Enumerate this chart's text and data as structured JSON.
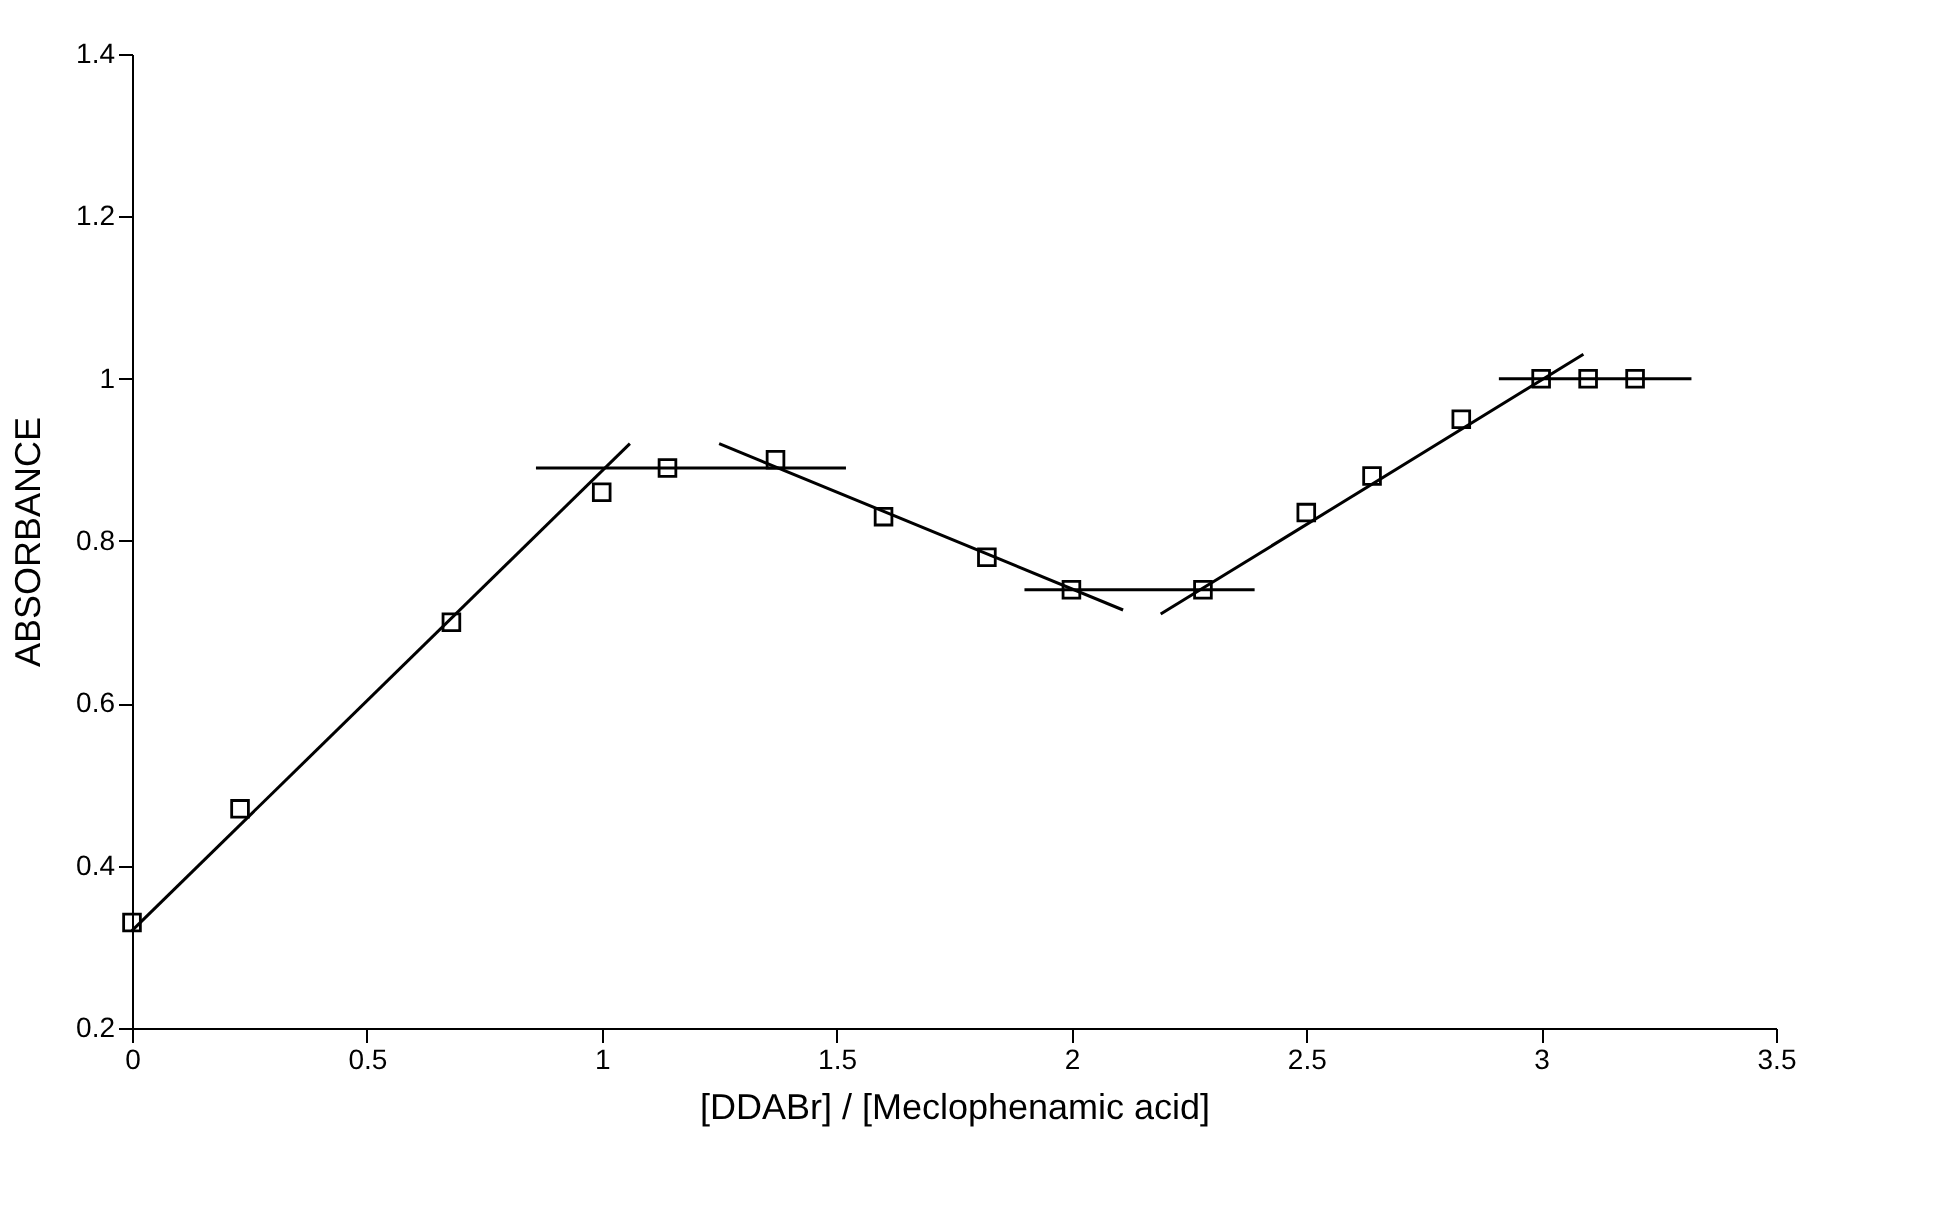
{
  "chart_data": {
    "type": "scatter",
    "xlabel": "[DDABr] / [Meclophenamic acid]",
    "ylabel": "ABSORBANCE",
    "xlim": [
      0,
      3.5
    ],
    "xticks": [
      0,
      0.5,
      1,
      1.5,
      2,
      2.5,
      3,
      3.5
    ],
    "ylim": [
      0.2,
      1.4
    ],
    "yticks": [
      0.2,
      0.4,
      0.6,
      0.8,
      1,
      1.2,
      1.4
    ],
    "grid": false,
    "series": [
      {
        "marker": "square",
        "color": "#000000",
        "x": [
          0,
          0.23,
          0.68,
          1.0,
          1.14,
          1.37,
          1.6,
          1.82,
          2.0,
          2.28,
          2.5,
          2.64,
          2.83,
          3.0,
          3.1,
          3.2
        ],
        "values": [
          0.33,
          0.47,
          0.7,
          0.86,
          0.89,
          0.9,
          0.83,
          0.78,
          0.74,
          0.74,
          0.835,
          0.88,
          0.95,
          1.0,
          1.0,
          1.0
        ]
      },
      {
        "type": "line",
        "color": "#000000",
        "x": [
          0,
          1.06
        ],
        "values": [
          0.32,
          0.92
        ]
      },
      {
        "type": "line",
        "color": "#000000",
        "x": [
          0.86,
          1.52
        ],
        "values": [
          0.89,
          0.89
        ]
      },
      {
        "type": "line",
        "color": "#000000",
        "x": [
          1.25,
          2.11
        ],
        "values": [
          0.92,
          0.715
        ]
      },
      {
        "type": "line",
        "color": "#000000",
        "x": [
          1.9,
          2.39
        ],
        "values": [
          0.74,
          0.74
        ]
      },
      {
        "type": "line",
        "color": "#000000",
        "x": [
          2.19,
          3.09
        ],
        "values": [
          0.71,
          1.03
        ]
      },
      {
        "type": "line",
        "color": "#000000",
        "x": [
          2.91,
          3.32
        ],
        "values": [
          1.0,
          1.0
        ]
      }
    ]
  }
}
